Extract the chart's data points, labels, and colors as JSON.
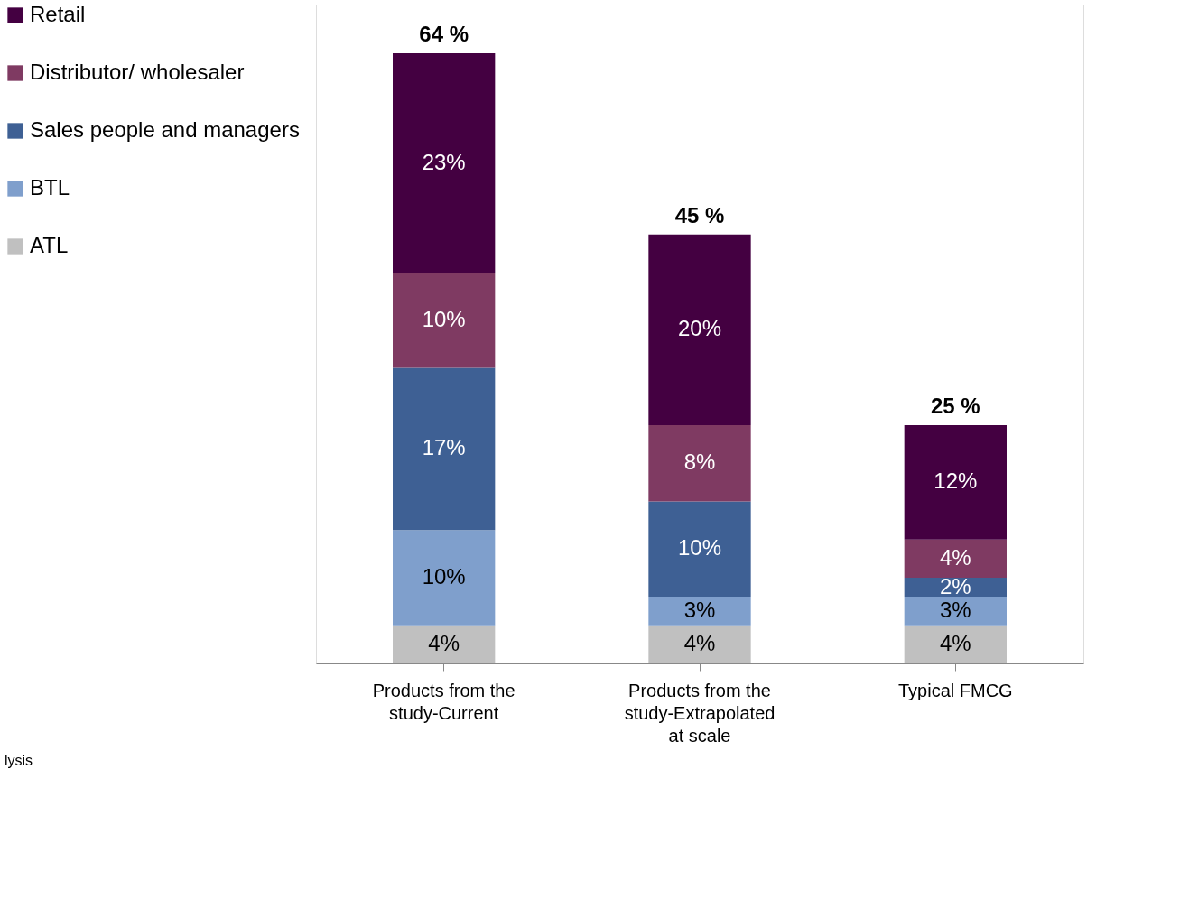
{
  "chart_data": {
    "type": "bar",
    "stacked": true,
    "legend": "left",
    "tick_labels": "x",
    "categories": [
      "Products from the study-Current",
      "Products from the study-Extrapolated at scale",
      "Typical FMCG"
    ],
    "series": [
      {
        "name": "ATL",
        "color": "#c0c0c0",
        "values": [
          4,
          4,
          4
        ],
        "value_labels": [
          "4%",
          "4%",
          "4%"
        ]
      },
      {
        "name": "BTL",
        "color": "#7f9fcc",
        "values": [
          10,
          3,
          3
        ],
        "value_labels": [
          "10%",
          "3%",
          "3%"
        ]
      },
      {
        "name": "Sales people and managers",
        "color": "#3e6094",
        "values": [
          17,
          10,
          2
        ],
        "value_labels": [
          "17%",
          "10%",
          "2%"
        ]
      },
      {
        "name": "Distributor/ wholesaler",
        "color": "#7f3a62",
        "values": [
          10,
          8,
          4
        ],
        "value_labels": [
          "10%",
          "8%",
          "4%"
        ]
      },
      {
        "name": "Retail",
        "color": "#440041",
        "values": [
          23,
          20,
          12
        ],
        "value_labels": [
          "23%",
          "20%",
          "12%"
        ]
      }
    ],
    "totals": [
      "64 %",
      "45 %",
      "25 %"
    ],
    "annotations": [
      "lysis"
    ]
  }
}
